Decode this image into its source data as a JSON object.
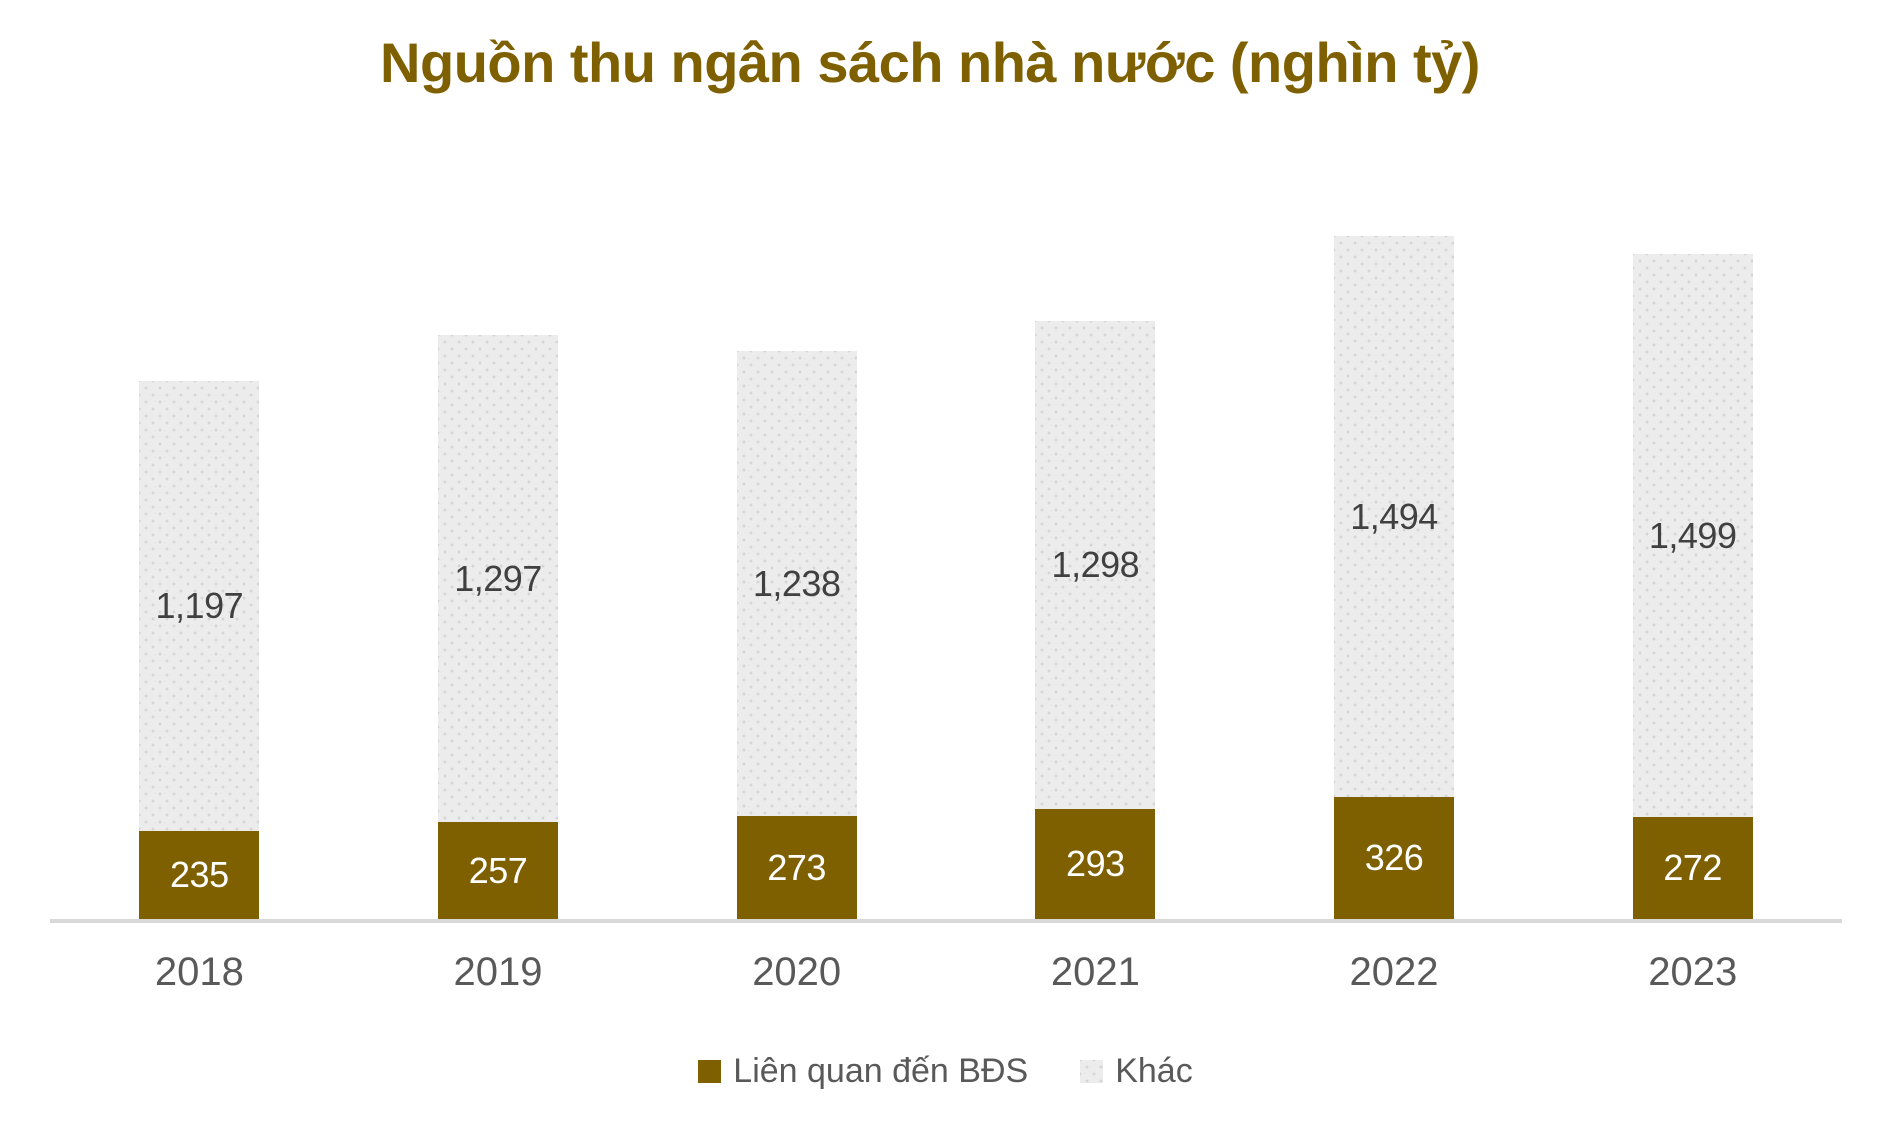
{
  "chart_data": {
    "type": "bar",
    "stacked": true,
    "title": "Nguồn thu ngân sách nhà nước (nghìn tỷ)",
    "categories": [
      "2018",
      "2019",
      "2020",
      "2021",
      "2022",
      "2023"
    ],
    "series": [
      {
        "name": "Liên quan đến BĐS",
        "values": [
          235,
          257,
          273,
          293,
          326,
          272
        ],
        "color": "#7F6000",
        "pattern": "solid",
        "label_color": "#FFFFFF"
      },
      {
        "name": "Khác",
        "values": [
          1197,
          1297,
          1238,
          1298,
          1494,
          1499
        ],
        "color": "#ECECEC",
        "pattern": "dotted",
        "label_color": "#404040"
      }
    ],
    "data_labels": "inside-center",
    "number_format": "thousands-comma",
    "xlabel": "",
    "ylabel": "",
    "ylim": [
      0,
      2100
    ],
    "gridlines": false,
    "y_axis_visible": false,
    "legend_position": "bottom"
  },
  "styles": {
    "title_color": "#7F6000",
    "bar_bds_color": "#7F6000",
    "bar_khac_color": "#ECECEC",
    "khac_dot_color": "#D5D5D5",
    "axis_line_color": "#D9D9D9",
    "x_label_color": "#595959",
    "legend_text_color": "#595959",
    "background_color": "#FFFFFF"
  }
}
